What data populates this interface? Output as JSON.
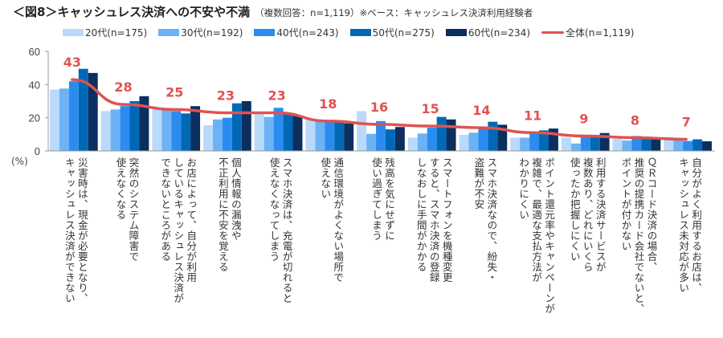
{
  "title": "＜図8＞キャッシュレス決済への不安や不満",
  "subtitle": "（複数回答：n=1,119）※ベース：キャッシュレス決済利用経験者",
  "chart_data": {
    "type": "bar",
    "ylabel": "(%)",
    "ylim": [
      0,
      60
    ],
    "yticks": [
      0,
      20,
      40,
      60
    ],
    "legend": "top",
    "categories": [
      "災害時は、現金が必要となり、\nキャッシュレス決済ができない",
      "突然のシステム障害で\n使えなくなる",
      "お店によって、自分が利用\nしているキャッシュレス決済が\nできないところがある",
      "個人情報の漏洩や\n不正利用に不安を覚える",
      "スマホ決済は、充電が切れると\n使えなくなってしまう",
      "通信環境がよくない場所で\n使えない",
      "残高を気にせずに\n使い過ぎてしまう",
      "スマートフォンを機種変更\nすると、スマホ決済の登録\nしなおしに手間がかかる",
      "スマホ決済なので、紛失・\n盗難が不安",
      "ポイント還元率やキャンペーンが\n複雑で、最適な支払方法が\nわかりにくい",
      "利用する決済サービスが\n複数あり、どれにいくら\n使ったか把握しにくい",
      "ＱＲコード決済の場合、\n推奨の提携カード会社でないと、\nポイントが付かない",
      "自分がよく利用するお店は、\nキャッシュレス未対応が多い"
    ],
    "series": [
      {
        "name": "20代(n=175)",
        "color": "#b9dafa",
        "values": [
          37,
          24,
          25,
          15.5,
          23,
          18.7,
          24,
          8,
          9.7,
          8,
          8,
          7.3,
          8.4
        ]
      },
      {
        "name": "30代(n=192)",
        "color": "#6cb2f5",
        "values": [
          37.6,
          25,
          25,
          19,
          20.5,
          18.4,
          10.3,
          10.5,
          11,
          8,
          4.5,
          6.3,
          7
        ]
      },
      {
        "name": "40代(n=243)",
        "color": "#2b8cf0",
        "values": [
          42,
          27,
          24,
          20,
          26,
          18,
          18,
          14,
          14,
          10.5,
          9.2,
          9,
          6
        ]
      },
      {
        "name": "50代(n=275)",
        "color": "#0069b6",
        "values": [
          49.5,
          30,
          22.6,
          28.7,
          23,
          17.4,
          13,
          20.5,
          17.6,
          12.4,
          9.2,
          8,
          7
        ]
      },
      {
        "name": "60代(n=234)",
        "color": "#0b2f5e",
        "values": [
          47,
          33,
          27,
          30,
          21,
          16.6,
          14.4,
          19,
          15.8,
          13.5,
          10.8,
          8,
          5.8
        ]
      }
    ],
    "total": {
      "name": "全体(n=1,119)",
      "color": "#e05252",
      "values": [
        43,
        28,
        25,
        23,
        23,
        18,
        16,
        15,
        14,
        11,
        9,
        8,
        7
      ]
    }
  }
}
